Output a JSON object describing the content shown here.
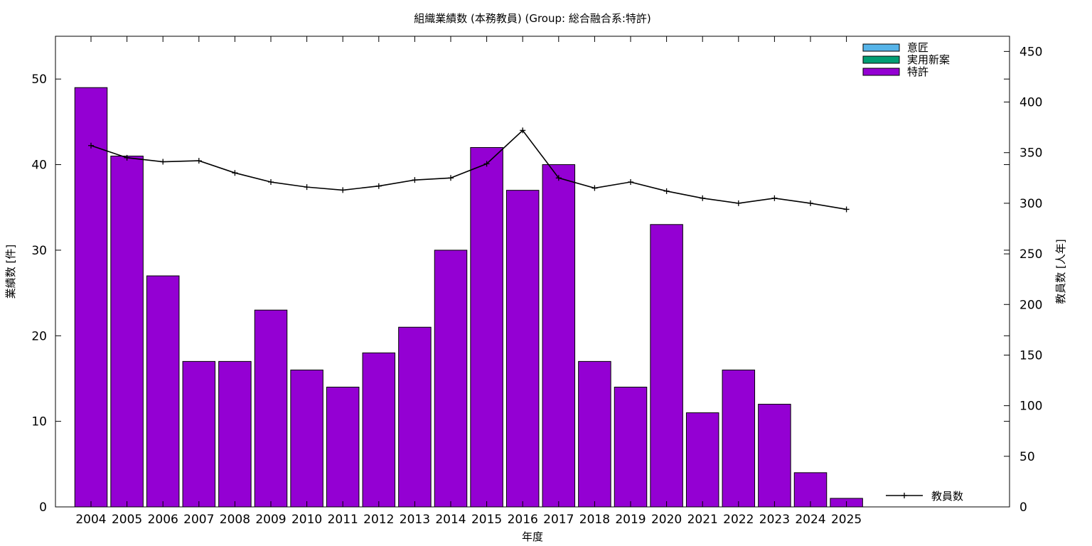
{
  "chart_data": {
    "type": "bar",
    "title": "組織業績数 (本務教員) (Group: 総合融合系:特許)",
    "xlabel": "年度",
    "ylabel": "業績数 [件]",
    "y2label": "教員数 [人年]",
    "categories": [
      "2004",
      "2005",
      "2006",
      "2007",
      "2008",
      "2009",
      "2010",
      "2011",
      "2012",
      "2013",
      "2014",
      "2015",
      "2016",
      "2017",
      "2018",
      "2019",
      "2020",
      "2021",
      "2022",
      "2023",
      "2024",
      "2025"
    ],
    "ylim": [
      0,
      55
    ],
    "y2lim": [
      0,
      465
    ],
    "yticks": [
      0,
      10,
      20,
      30,
      40,
      50
    ],
    "y2ticks": [
      0,
      50,
      100,
      150,
      200,
      250,
      300,
      350,
      400,
      450
    ],
    "grid": false,
    "legend_position": "top-right",
    "series": [
      {
        "name": "意匠",
        "values": [
          0,
          0,
          0,
          0,
          0,
          0,
          0,
          0,
          0,
          0,
          0,
          0,
          0,
          0,
          0,
          0,
          0,
          0,
          0,
          0,
          0,
          0
        ],
        "color": "#56b4e9",
        "axis": "left"
      },
      {
        "name": "実用新案",
        "values": [
          0,
          0,
          0,
          0,
          0,
          0,
          0,
          0,
          0,
          0,
          0,
          0,
          0,
          0,
          0,
          0,
          0,
          0,
          0,
          0,
          0,
          0
        ],
        "color": "#009e73",
        "axis": "left"
      },
      {
        "name": "特許",
        "values": [
          49,
          41,
          27,
          17,
          17,
          23,
          16,
          14,
          18,
          21,
          30,
          42,
          37,
          40,
          17,
          14,
          33,
          11,
          16,
          12,
          4,
          1
        ],
        "color": "#9400d3",
        "axis": "left"
      }
    ],
    "line_series": {
      "name": "教員数",
      "axis": "right",
      "color": "#000000",
      "values": [
        357,
        345,
        341,
        342,
        330,
        321,
        316,
        313,
        317,
        323,
        325,
        339,
        372,
        325,
        315,
        321,
        312,
        305,
        300,
        305,
        300,
        294
      ]
    }
  }
}
